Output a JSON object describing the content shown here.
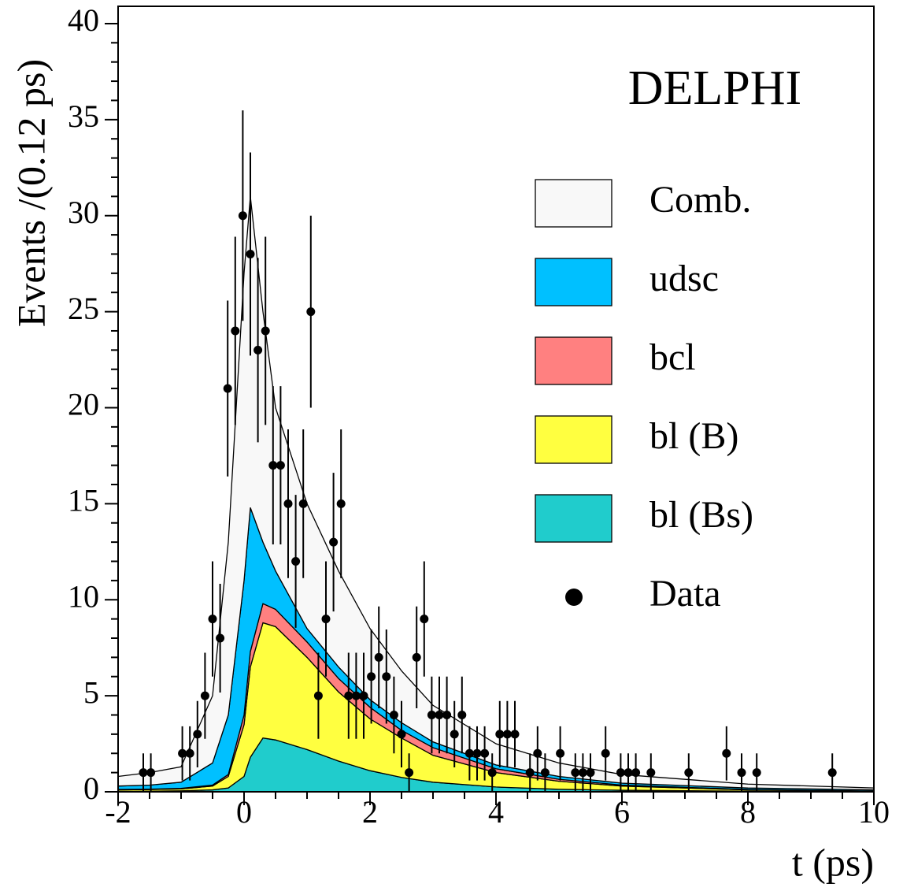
{
  "chart_data": {
    "type": "stacked_area",
    "title": "DELPHI",
    "y_label": "Events /(0.12 ps)",
    "x_label": "t (ps)",
    "xlim": [
      -2,
      10
    ],
    "ylim": [
      0,
      40.9
    ],
    "xticks": [
      -2,
      0,
      2,
      4,
      6,
      8,
      10
    ],
    "yticks": [
      0,
      5,
      10,
      15,
      20,
      25,
      30,
      35,
      40
    ],
    "x": [
      -2,
      -1.5,
      -1,
      -0.5,
      -0.25,
      0,
      0.1,
      0.3,
      0.5,
      1,
      1.5,
      2,
      2.5,
      3,
      4,
      5,
      6,
      8,
      10
    ],
    "series": [
      {
        "name": "Comb.",
        "color": "#f8f8f8",
        "values": [
          0.5,
          0.65,
          0.8,
          3.5,
          9,
          16,
          16.2,
          12,
          8.5,
          6.5,
          5.0,
          3.7,
          2.7,
          1.9,
          1.1,
          0.7,
          0.45,
          0.2,
          0.1
        ]
      },
      {
        "name": "udsc",
        "color": "#00c0ff",
        "values": [
          0.18,
          0.21,
          0.32,
          1.15,
          3.1,
          7.0,
          7.5,
          3.2,
          2.0,
          0.7,
          0.6,
          0.4,
          0.4,
          0.3,
          0.2,
          0.15,
          0.1,
          0.08,
          0.06
        ]
      },
      {
        "name": "bcl",
        "color": "#ff8080",
        "values": [
          0.02,
          0.02,
          0.03,
          0.05,
          0.1,
          0.5,
          0.8,
          1.0,
          0.9,
          0.8,
          0.7,
          0.6,
          0.4,
          0.4,
          0.2,
          0.1,
          0.05,
          0.02,
          0.01
        ]
      },
      {
        "name": "bl (B)",
        "color": "#ffff40",
        "values": [
          0.08,
          0.09,
          0.1,
          0.2,
          0.6,
          2.7,
          4.7,
          6.0,
          5.9,
          4.8,
          3.6,
          2.7,
          2.05,
          1.4,
          0.75,
          0.42,
          0.22,
          0.07,
          0.02
        ]
      },
      {
        "name": "bl (Bs)",
        "color": "#20cccc",
        "values": [
          0.02,
          0.03,
          0.05,
          0.1,
          0.2,
          0.8,
          1.8,
          2.8,
          2.7,
          2.2,
          1.6,
          1.1,
          0.75,
          0.5,
          0.25,
          0.13,
          0.08,
          0.03,
          0.01
        ]
      }
    ],
    "data": {
      "name": "Data",
      "color": "#000000",
      "x": [
        -1.6,
        -1.48,
        -0.98,
        -0.86,
        -0.74,
        -0.62,
        -0.5,
        -0.38,
        -0.26,
        -0.14,
        -0.02,
        0.1,
        0.22,
        0.34,
        0.46,
        0.58,
        0.7,
        0.82,
        0.94,
        1.06,
        1.18,
        1.3,
        1.42,
        1.54,
        1.66,
        1.78,
        1.9,
        2.02,
        2.14,
        2.26,
        2.38,
        2.5,
        2.62,
        2.74,
        2.86,
        2.98,
        3.1,
        3.22,
        3.34,
        3.46,
        3.58,
        3.7,
        3.82,
        3.94,
        4.06,
        4.18,
        4.3,
        4.54,
        4.66,
        4.78,
        5.02,
        5.26,
        5.38,
        5.5,
        5.74,
        5.98,
        6.1,
        6.22,
        6.46,
        7.06,
        7.66,
        7.9,
        8.14,
        9.34
      ],
      "values": [
        1,
        1,
        2,
        2,
        3,
        5,
        9,
        8,
        21,
        24,
        30,
        28,
        23,
        24,
        17,
        17,
        15,
        12,
        15,
        25,
        5,
        9,
        13,
        15,
        5,
        5,
        5,
        6,
        7,
        6,
        4,
        3,
        1,
        7,
        9,
        4,
        4,
        4,
        3,
        4,
        2,
        2,
        2,
        1,
        3,
        3,
        3,
        1,
        2,
        1,
        2,
        1,
        1,
        1,
        2,
        1,
        1,
        1,
        1,
        1,
        2,
        1,
        1,
        1
      ],
      "errors": [
        1,
        1,
        1.41,
        1.41,
        1.73,
        2.24,
        3,
        2.83,
        4.58,
        4.9,
        5.48,
        5.29,
        4.8,
        4.9,
        4.12,
        4.12,
        3.87,
        3.46,
        3.87,
        5,
        2.24,
        3,
        3.61,
        3.87,
        2.24,
        2.24,
        2.24,
        2.45,
        2.65,
        2.45,
        2,
        1.73,
        1,
        2.65,
        3,
        2,
        2,
        2,
        1.73,
        2,
        1.41,
        1.41,
        1.41,
        1,
        1.73,
        1.73,
        1.73,
        1,
        1.41,
        1,
        1.41,
        1,
        1,
        1,
        1.41,
        1,
        1,
        1,
        1,
        1,
        1.41,
        1,
        1,
        1
      ]
    }
  }
}
